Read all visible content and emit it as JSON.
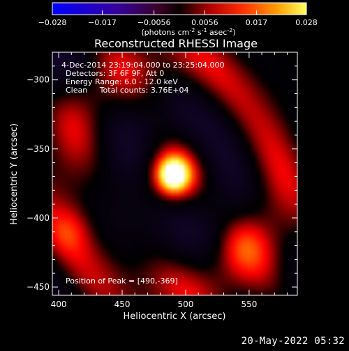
{
  "colorbar": {
    "ticks": [
      "-0.028",
      "-0.017",
      "-0.0056",
      "0.0056",
      "0.017",
      "0.028"
    ],
    "min": -0.028,
    "max": 0.028,
    "unit_prefix": "(photons cm",
    "unit_sup1": "-2",
    "unit_mid": " s",
    "unit_sup2": "-1",
    "unit_mid2": " asec",
    "unit_sup3": "-2",
    "unit_suffix": ")"
  },
  "chart_data": {
    "type": "heatmap",
    "title": "Reconstructed RHESSI Image",
    "xlabel": "Heliocentric X (arcsec)",
    "ylabel": "Heliocentric Y (arcsec)",
    "xlim": [
      395,
      588
    ],
    "ylim": [
      -456,
      -280
    ],
    "x_ticks": [
      400,
      450,
      500,
      550
    ],
    "y_ticks": [
      -300,
      -350,
      -400,
      -450
    ],
    "peak": {
      "x": 490,
      "y": -369
    },
    "colormap": "hot (black-purple-red-orange-yellow-white)",
    "annotations": [
      " 4-Dec-2014 23:19:04.000 to 23:25:04.000",
      "Detectors: 3F 6F 9F, Att 0",
      "Energy Range: 6.0 - 12.0 keV",
      "Clean     Total counts: 3.76E+04"
    ],
    "peak_label": "Position of Peak = [490,-369]"
  },
  "footer": {
    "date": "20-May-2022 05:32"
  }
}
